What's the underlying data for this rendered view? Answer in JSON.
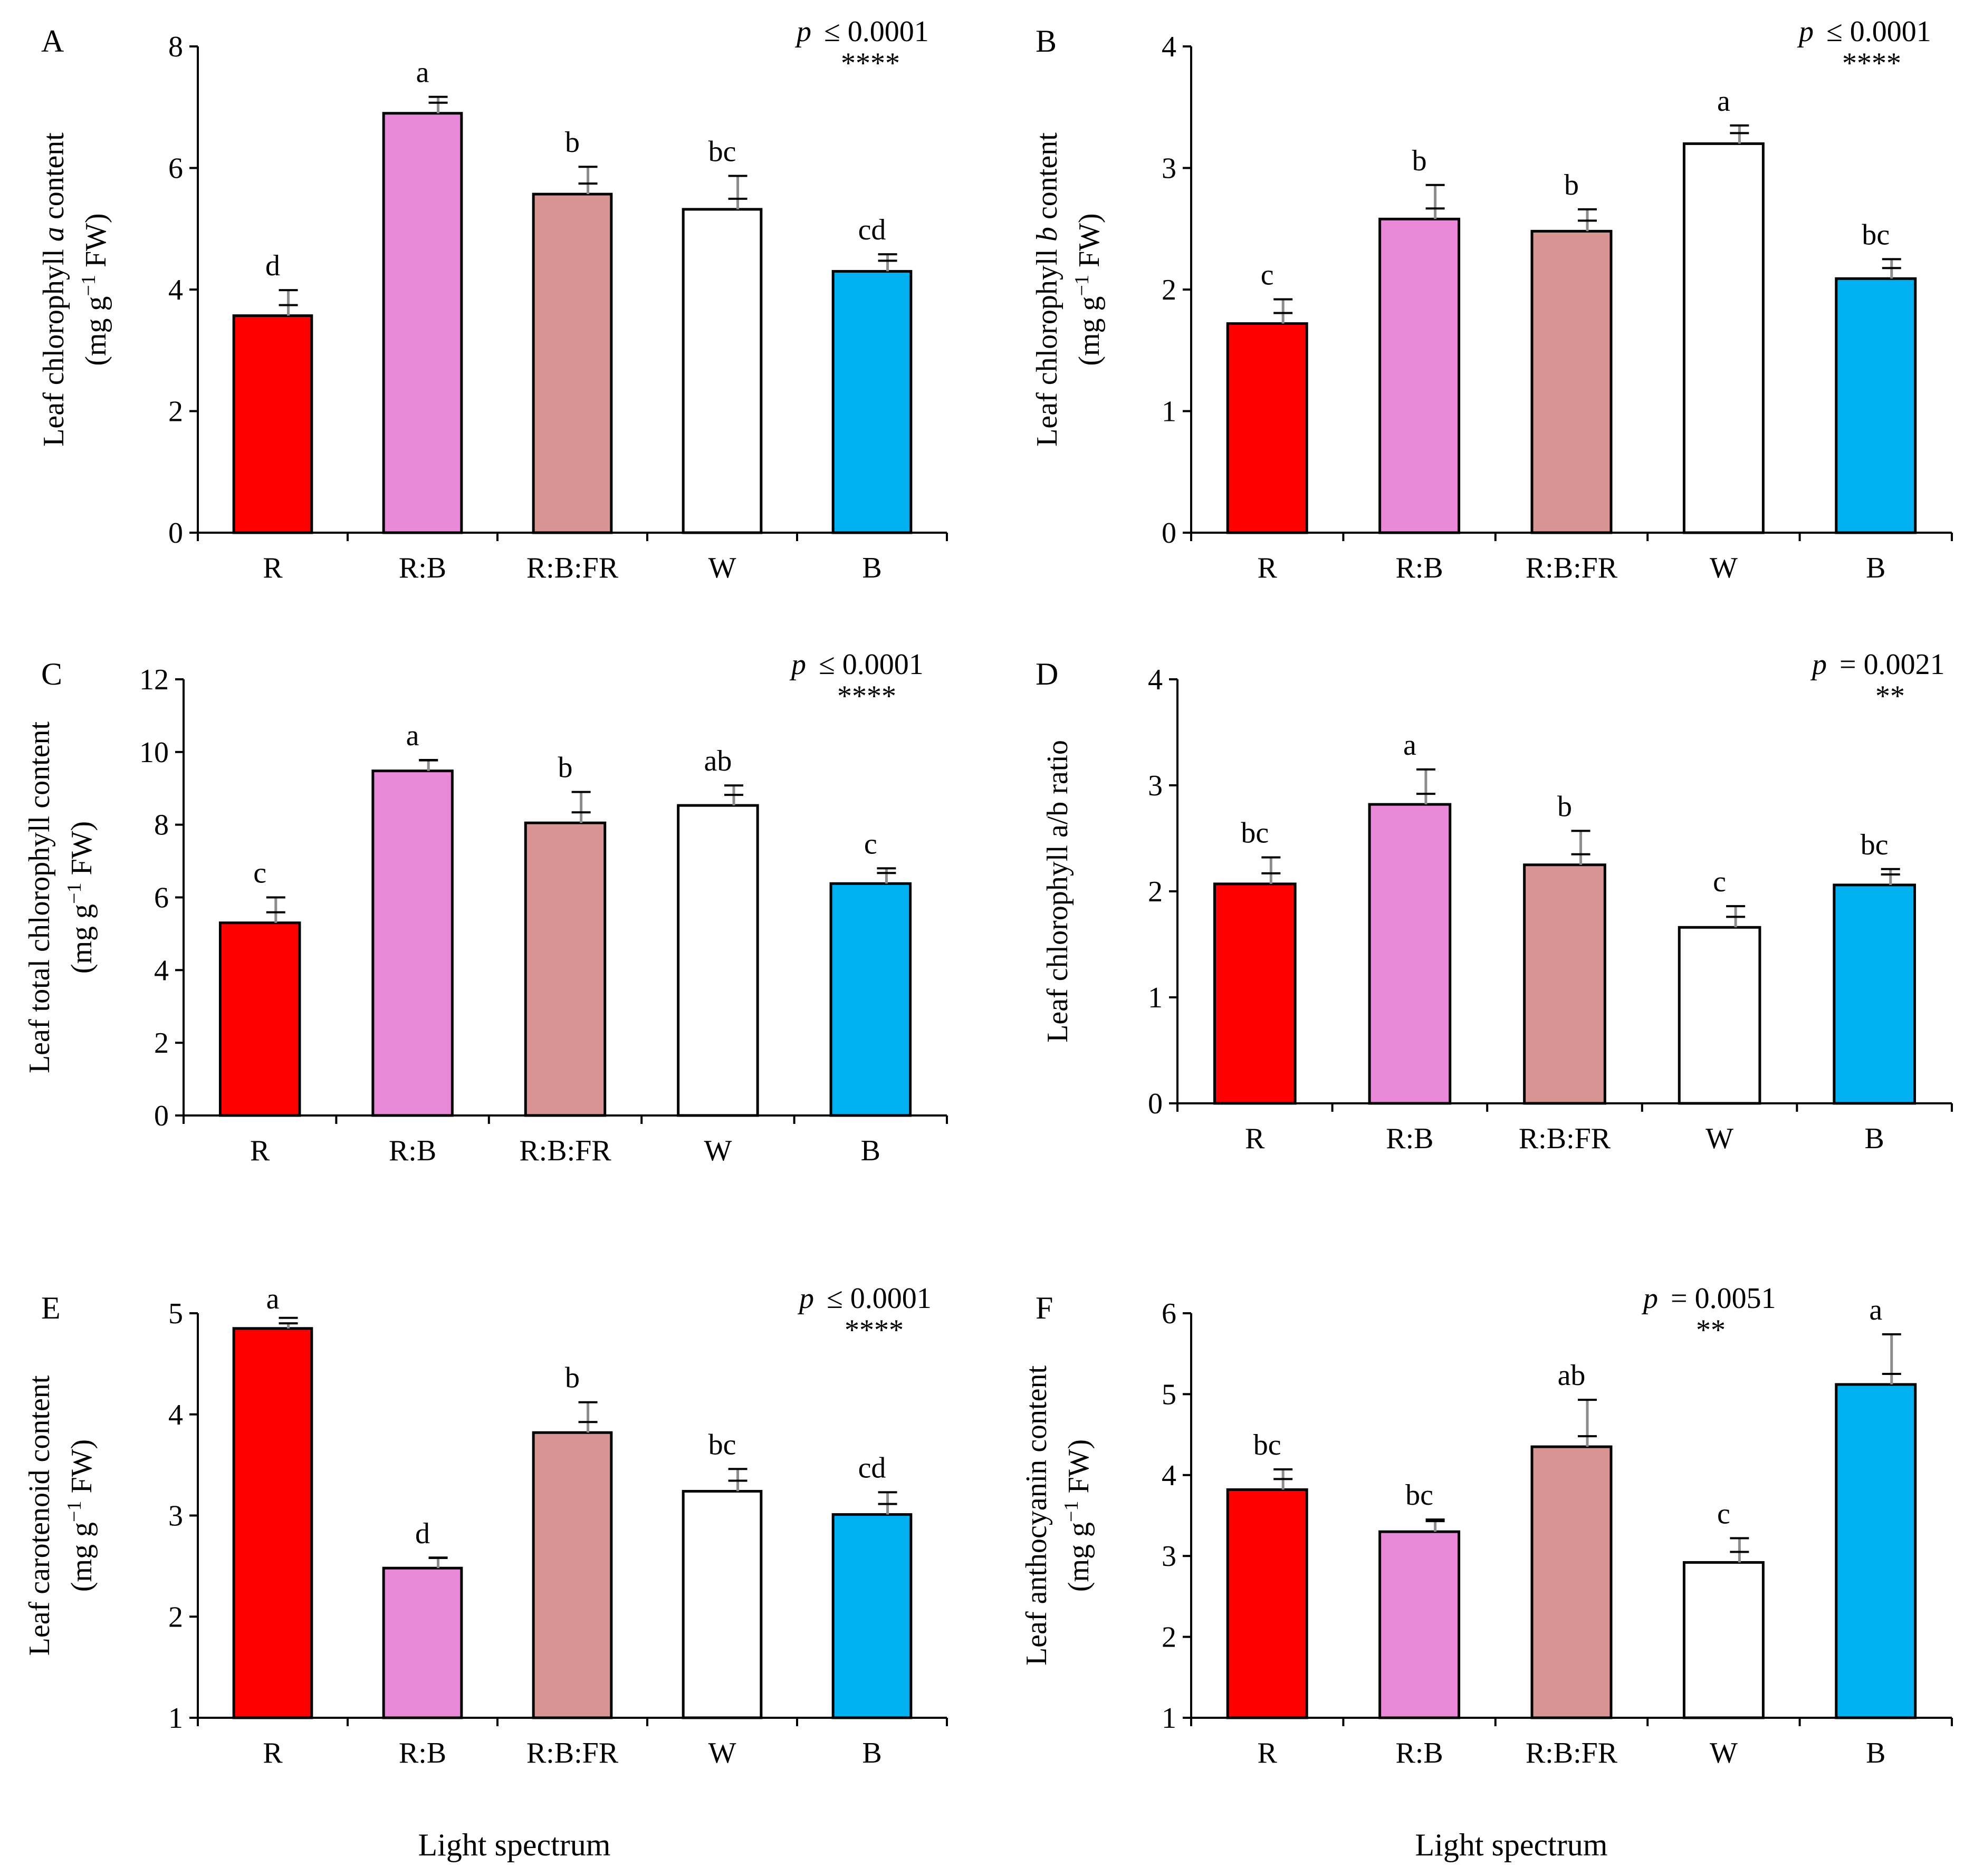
{
  "x_axis_label": "Light spectrum",
  "chart_data": [
    {
      "panel": "A",
      "type": "bar",
      "categories": [
        "R",
        "R:B",
        "R:B:FR",
        "W",
        "B"
      ],
      "values": [
        3.57,
        6.9,
        5.57,
        5.32,
        4.3
      ],
      "errors": [
        0.42,
        0.27,
        0.45,
        0.55,
        0.28
      ],
      "letters": [
        "d",
        "a",
        "b",
        "bc",
        "cd"
      ],
      "colors": [
        "#ff0000",
        "#ea89d8",
        "#d99594",
        "#ffffff",
        "#00b0f0"
      ],
      "ylabel_line1_pre": "Leaf chlorophyll ",
      "ylabel_line1_italic": "a",
      "ylabel_line1_post": " content",
      "ylabel_line2_pre": "(mg g",
      "ylabel_line2_sup": "−1",
      "ylabel_line2_post": " FW)",
      "ylim": [
        0,
        8
      ],
      "yticks": [
        0,
        2,
        4,
        6,
        8
      ],
      "p_symbol": "p",
      "p_text": "≤ 0.0001",
      "stars": "****"
    },
    {
      "panel": "B",
      "type": "bar",
      "categories": [
        "R",
        "R:B",
        "R:B:FR",
        "W",
        "B"
      ],
      "values": [
        1.72,
        2.58,
        2.48,
        3.2,
        2.09
      ],
      "errors": [
        0.2,
        0.28,
        0.18,
        0.15,
        0.16
      ],
      "letters": [
        "c",
        "b",
        "b",
        "a",
        "bc"
      ],
      "colors": [
        "#ff0000",
        "#ea89d8",
        "#d99594",
        "#ffffff",
        "#00b0f0"
      ],
      "ylabel_line1_pre": "Leaf chlorophyll ",
      "ylabel_line1_italic": "b",
      "ylabel_line1_post": " content",
      "ylabel_line2_pre": "(mg g",
      "ylabel_line2_sup": "−1",
      "ylabel_line2_post": " FW)",
      "ylim": [
        0,
        4
      ],
      "yticks": [
        0,
        1,
        2,
        3,
        4
      ],
      "p_symbol": "p",
      "p_text": "≤ 0.0001",
      "stars": "****"
    },
    {
      "panel": "C",
      "type": "bar",
      "categories": [
        "R",
        "R:B",
        "R:B:FR",
        "W",
        "B"
      ],
      "values": [
        5.3,
        9.48,
        8.05,
        8.53,
        6.38
      ],
      "errors": [
        0.7,
        0.3,
        0.85,
        0.55,
        0.42
      ],
      "letters": [
        "c",
        "a",
        "b",
        "ab",
        "c"
      ],
      "colors": [
        "#ff0000",
        "#ea89d8",
        "#d99594",
        "#ffffff",
        "#00b0f0"
      ],
      "ylabel_line1_pre": "Leaf total chlorophyll content",
      "ylabel_line1_italic": "",
      "ylabel_line1_post": "",
      "ylabel_line2_pre": "(mg g",
      "ylabel_line2_sup": "−1",
      "ylabel_line2_post": " FW)",
      "ylim": [
        0,
        12
      ],
      "yticks": [
        0,
        2,
        4,
        6,
        8,
        10,
        12
      ],
      "p_symbol": "p",
      "p_text": "≤ 0.0001",
      "stars": "****"
    },
    {
      "panel": "D",
      "type": "bar",
      "categories": [
        "R",
        "R:B",
        "R:B:FR",
        "W",
        "B"
      ],
      "values": [
        2.07,
        2.82,
        2.25,
        1.66,
        2.06
      ],
      "errors": [
        0.25,
        0.33,
        0.32,
        0.2,
        0.15
      ],
      "letters": [
        "bc",
        "a",
        "b",
        "c",
        "bc"
      ],
      "colors": [
        "#ff0000",
        "#ea89d8",
        "#d99594",
        "#ffffff",
        "#00b0f0"
      ],
      "ylabel_line1_pre": "Leaf chlorophyll a/b ratio",
      "ylabel_line1_italic": "",
      "ylabel_line1_post": "",
      "ylabel_line2_pre": "",
      "ylabel_line2_sup": "",
      "ylabel_line2_post": "",
      "ylim": [
        0,
        4
      ],
      "yticks": [
        0,
        1,
        2,
        3,
        4
      ],
      "p_symbol": "p",
      "p_text": "=  0.0021",
      "stars": "**"
    },
    {
      "panel": "E",
      "type": "bar",
      "categories": [
        "R",
        "R:B",
        "R:B:FR",
        "W",
        "B"
      ],
      "values": [
        4.85,
        2.48,
        3.82,
        3.24,
        3.01
      ],
      "errors": [
        0.05,
        0.1,
        0.3,
        0.22,
        0.22
      ],
      "letters": [
        "a",
        "d",
        "b",
        "bc",
        "cd"
      ],
      "colors": [
        "#ff0000",
        "#ea89d8",
        "#d99594",
        "#ffffff",
        "#00b0f0"
      ],
      "ylabel_line1_pre": "Leaf carotenoid content",
      "ylabel_line1_italic": "",
      "ylabel_line1_post": "",
      "ylabel_line2_pre": "(mg g",
      "ylabel_line2_sup": "−1",
      "ylabel_line2_post": " FW)",
      "ylim": [
        1,
        5
      ],
      "yticks": [
        1,
        2,
        3,
        4,
        5
      ],
      "p_symbol": "p",
      "p_text": "≤ 0.0001",
      "stars": "****"
    },
    {
      "panel": "F",
      "type": "bar",
      "categories": [
        "R",
        "R:B",
        "R:B:FR",
        "W",
        "B"
      ],
      "values": [
        3.82,
        3.3,
        4.35,
        2.92,
        5.12
      ],
      "errors": [
        0.25,
        0.15,
        0.58,
        0.3,
        0.62
      ],
      "letters": [
        "bc",
        "bc",
        "ab",
        "c",
        "a"
      ],
      "colors": [
        "#ff0000",
        "#ea89d8",
        "#d99594",
        "#ffffff",
        "#00b0f0"
      ],
      "ylabel_line1_pre": "Leaf anthocyanin content",
      "ylabel_line1_italic": "",
      "ylabel_line1_post": "",
      "ylabel_line2_pre": "(mg g",
      "ylabel_line2_sup": "−1",
      "ylabel_line2_post": " FW)",
      "ylim": [
        1,
        6
      ],
      "yticks": [
        1,
        2,
        3,
        4,
        5,
        6
      ],
      "p_symbol": "p",
      "p_text": "= 0.0051",
      "stars": "**"
    }
  ]
}
